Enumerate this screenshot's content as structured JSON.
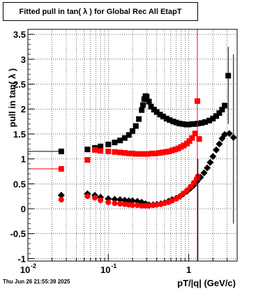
{
  "window": {
    "title": "Fitted pull in tan( λ ) for Global Rec All EtapT",
    "timestamp": "Thu Jun 26 21:55:39 2025"
  },
  "chart_data": {
    "type": "scatter",
    "title": "Fitted pull in tan( λ ) for Global Rec All EtapT",
    "xlabel": "pT/|q| (GeV/c)",
    "ylabel": "pull in tan( λ )",
    "xscale": "log",
    "xlim": [
      0.01,
      4.0
    ],
    "ylim": [
      -1.05,
      3.6
    ],
    "x_ticks": [
      "10",
      "10",
      "1"
    ],
    "x_tick_exponents": [
      "-2",
      "-1",
      ""
    ],
    "y_ticks": [
      "-1",
      "-0.5",
      "0",
      "0.5",
      "1",
      "1.5",
      "2",
      "2.5",
      "3",
      "3.5"
    ],
    "grid": true,
    "colors": {
      "black": "#000000",
      "red": "#ff0000"
    },
    "series": [
      {
        "marker": "square",
        "color": "#000000",
        "points": [
          [
            0.026,
            1.15
          ],
          [
            0.055,
            1.19
          ],
          [
            0.068,
            1.22
          ],
          [
            0.08,
            1.25
          ],
          [
            0.1,
            1.29
          ],
          [
            0.12,
            1.33
          ],
          [
            0.14,
            1.37
          ],
          [
            0.16,
            1.42
          ],
          [
            0.18,
            1.48
          ],
          [
            0.2,
            1.56
          ],
          [
            0.22,
            1.66
          ],
          [
            0.24,
            1.8
          ],
          [
            0.26,
            1.98
          ],
          [
            0.27,
            2.08
          ],
          [
            0.28,
            2.2
          ],
          [
            0.29,
            2.26
          ],
          [
            0.3,
            2.25
          ],
          [
            0.32,
            2.15
          ],
          [
            0.34,
            2.05
          ],
          [
            0.37,
            1.99
          ],
          [
            0.4,
            1.94
          ],
          [
            0.44,
            1.89
          ],
          [
            0.48,
            1.85
          ],
          [
            0.53,
            1.81
          ],
          [
            0.58,
            1.78
          ],
          [
            0.64,
            1.75
          ],
          [
            0.7,
            1.73
          ],
          [
            0.77,
            1.71
          ],
          [
            0.85,
            1.7
          ],
          [
            0.93,
            1.69
          ],
          [
            1.0,
            1.69
          ],
          [
            1.1,
            1.7
          ],
          [
            1.2,
            1.7
          ],
          [
            1.3,
            1.71
          ],
          [
            1.45,
            1.72
          ],
          [
            1.6,
            1.74
          ],
          [
            1.8,
            1.77
          ],
          [
            2.0,
            1.81
          ],
          [
            2.2,
            1.86
          ],
          [
            2.4,
            1.92
          ],
          [
            2.6,
            1.99
          ],
          [
            2.8,
            2.07
          ],
          [
            3.1,
            2.67
          ]
        ]
      },
      {
        "marker": "square",
        "color": "#ff0000",
        "points": [
          [
            0.026,
            0.8
          ],
          [
            0.055,
            0.98
          ],
          [
            0.068,
            1.18
          ],
          [
            0.08,
            1.16
          ],
          [
            0.1,
            1.15
          ],
          [
            0.12,
            1.14
          ],
          [
            0.14,
            1.13
          ],
          [
            0.16,
            1.12
          ],
          [
            0.18,
            1.11
          ],
          [
            0.2,
            1.11
          ],
          [
            0.22,
            1.1
          ],
          [
            0.25,
            1.1
          ],
          [
            0.28,
            1.1
          ],
          [
            0.31,
            1.1
          ],
          [
            0.35,
            1.11
          ],
          [
            0.39,
            1.11
          ],
          [
            0.43,
            1.12
          ],
          [
            0.47,
            1.13
          ],
          [
            0.52,
            1.14
          ],
          [
            0.57,
            1.15
          ],
          [
            0.62,
            1.17
          ],
          [
            0.68,
            1.19
          ],
          [
            0.74,
            1.21
          ],
          [
            0.8,
            1.24
          ],
          [
            0.87,
            1.27
          ],
          [
            0.95,
            1.31
          ],
          [
            1.02,
            1.36
          ],
          [
            1.1,
            1.42
          ],
          [
            1.2,
            1.51
          ],
          [
            1.28,
            2.16
          ],
          [
            1.35,
            1.4
          ]
        ]
      },
      {
        "marker": "diamond",
        "color": "#000000",
        "points": [
          [
            0.026,
            0.27
          ],
          [
            0.055,
            0.3
          ],
          [
            0.068,
            0.27
          ],
          [
            0.08,
            0.23
          ],
          [
            0.1,
            0.2
          ],
          [
            0.12,
            0.19
          ],
          [
            0.14,
            0.18
          ],
          [
            0.16,
            0.17
          ],
          [
            0.18,
            0.16
          ],
          [
            0.2,
            0.16
          ],
          [
            0.23,
            0.15
          ],
          [
            0.26,
            0.13
          ],
          [
            0.29,
            0.1
          ],
          [
            0.32,
            0.08
          ],
          [
            0.36,
            0.08
          ],
          [
            0.4,
            0.09
          ],
          [
            0.45,
            0.1
          ],
          [
            0.5,
            0.12
          ],
          [
            0.56,
            0.15
          ],
          [
            0.62,
            0.18
          ],
          [
            0.7,
            0.21
          ],
          [
            0.78,
            0.25
          ],
          [
            0.86,
            0.3
          ],
          [
            0.95,
            0.35
          ],
          [
            1.05,
            0.41
          ],
          [
            1.15,
            0.47
          ],
          [
            1.27,
            0.55
          ],
          [
            1.4,
            0.63
          ],
          [
            1.55,
            0.72
          ],
          [
            1.7,
            0.82
          ],
          [
            1.85,
            0.93
          ],
          [
            2.0,
            1.05
          ],
          [
            2.2,
            1.18
          ],
          [
            2.4,
            1.3
          ],
          [
            2.6,
            1.41
          ],
          [
            2.8,
            1.49
          ],
          [
            3.2,
            1.51
          ],
          [
            3.6,
            1.43
          ]
        ]
      },
      {
        "marker": "circle",
        "color": "#ff0000",
        "points": [
          [
            0.026,
            0.18
          ],
          [
            0.055,
            0.25
          ],
          [
            0.068,
            0.22
          ],
          [
            0.08,
            0.17
          ],
          [
            0.1,
            0.13
          ],
          [
            0.12,
            0.11
          ],
          [
            0.14,
            0.1
          ],
          [
            0.16,
            0.09
          ],
          [
            0.18,
            0.08
          ],
          [
            0.2,
            0.07
          ],
          [
            0.23,
            0.07
          ],
          [
            0.26,
            0.06
          ],
          [
            0.29,
            0.06
          ],
          [
            0.32,
            0.06
          ],
          [
            0.36,
            0.07
          ],
          [
            0.4,
            0.08
          ],
          [
            0.45,
            0.09
          ],
          [
            0.5,
            0.11
          ],
          [
            0.56,
            0.13
          ],
          [
            0.62,
            0.16
          ],
          [
            0.7,
            0.2
          ],
          [
            0.78,
            0.25
          ],
          [
            0.86,
            0.31
          ],
          [
            0.95,
            0.37
          ],
          [
            1.05,
            0.44
          ],
          [
            1.15,
            0.52
          ],
          [
            1.25,
            0.6
          ],
          [
            1.3,
            0.65
          ]
        ]
      }
    ]
  }
}
